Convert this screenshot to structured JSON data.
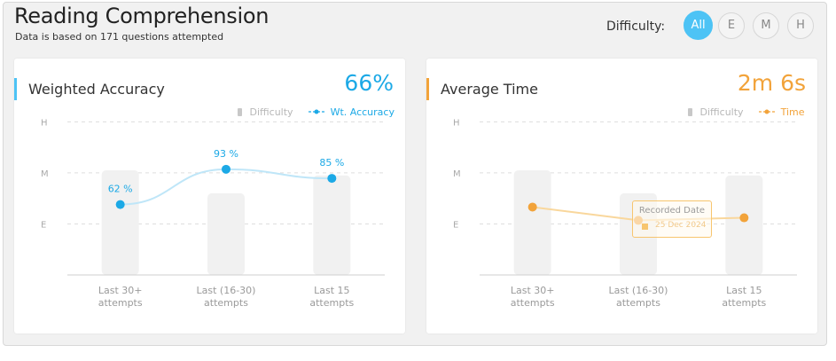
{
  "header": {
    "title": "Reading Comprehension",
    "subtitle": "Data is based on 171 questions attempted",
    "difficulty_label": "Difficulty:",
    "filters": [
      {
        "label": "All",
        "active": true
      },
      {
        "label": "E",
        "active": false
      },
      {
        "label": "M",
        "active": false
      },
      {
        "label": "H",
        "active": false
      }
    ]
  },
  "colors": {
    "accuracy": "#1ca9e6",
    "accuracy_line": "#bfe6f8",
    "time": "#f2a33a",
    "time_line": "#f9d79c",
    "bar": "#f1f1f1",
    "active_filter": "#4dc3f5"
  },
  "cards": {
    "accuracy": {
      "title": "Weighted Accuracy",
      "metric": "66%",
      "legend_bar": "Difficulty",
      "legend_line": "Wt. Accuracy"
    },
    "time": {
      "title": "Average Time",
      "metric": "2m 6s",
      "legend_bar": "Difficulty",
      "legend_line": "Time",
      "tooltip": {
        "title": "Recorded Date",
        "value": "25 Dec 2024"
      }
    }
  },
  "chart_data": [
    {
      "type": "bar",
      "categories": [
        [
          "Last 30+",
          "attempts"
        ],
        [
          "Last (16-30)",
          "attempts"
        ],
        [
          "Last 15",
          "attempts"
        ]
      ],
      "y_ticks": [
        "E",
        "M",
        "H"
      ],
      "series": [
        {
          "name": "Difficulty",
          "type": "bar",
          "values": [
            2.05,
            1.6,
            1.95
          ]
        },
        {
          "name": "Wt. Accuracy",
          "type": "line",
          "values": [
            62,
            93,
            85
          ],
          "labels": [
            "62 %",
            "93 %",
            "85 %"
          ]
        }
      ],
      "ylim": [
        0,
        2.85
      ]
    },
    {
      "type": "bar",
      "categories": [
        [
          "Last 30+",
          "attempts"
        ],
        [
          "Last (16-30)",
          "attempts"
        ],
        [
          "Last 15",
          "attempts"
        ]
      ],
      "y_ticks": [
        "E",
        "M",
        "H"
      ],
      "series": [
        {
          "name": "Difficulty",
          "type": "bar",
          "values": [
            2.05,
            1.6,
            1.95
          ]
        },
        {
          "name": "Time",
          "type": "line",
          "values": [
            1.33,
            1.07,
            1.12
          ]
        }
      ],
      "ylim": [
        0,
        2.85
      ]
    }
  ]
}
